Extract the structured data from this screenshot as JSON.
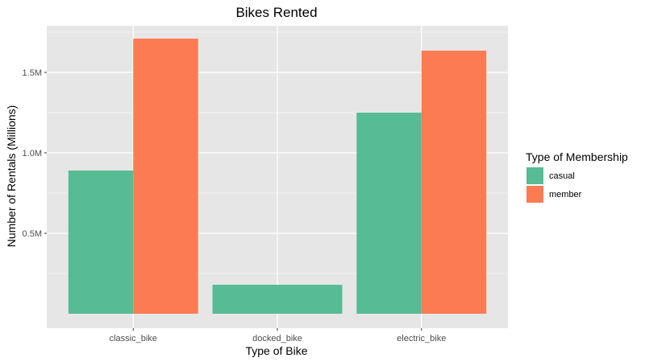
{
  "chart_data": {
    "type": "bar",
    "title": "Bikes Rented",
    "xlabel": "Type of Bike",
    "ylabel": "Number of Rentals (Millions)",
    "categories": [
      "classic_bike",
      "docked_bike",
      "electric_bike"
    ],
    "series": [
      {
        "name": "casual",
        "color": "#57BB95",
        "values": [
          0.89,
          0.18,
          1.25
        ]
      },
      {
        "name": "member",
        "color": "#FB7C53",
        "values": [
          1.71,
          null,
          1.635
        ]
      }
    ],
    "ylim": [
      -0.09,
      1.79
    ],
    "yticks": [
      0.5,
      1.0,
      1.5
    ],
    "ytick_labels": [
      "0.5M",
      "1.0M",
      "1.5M"
    ],
    "legend": {
      "title": "Type of Membership",
      "placement": "right"
    },
    "grid": true,
    "colors": {
      "panel": "#E6E6E6",
      "grid": "#FFFFFF"
    }
  }
}
